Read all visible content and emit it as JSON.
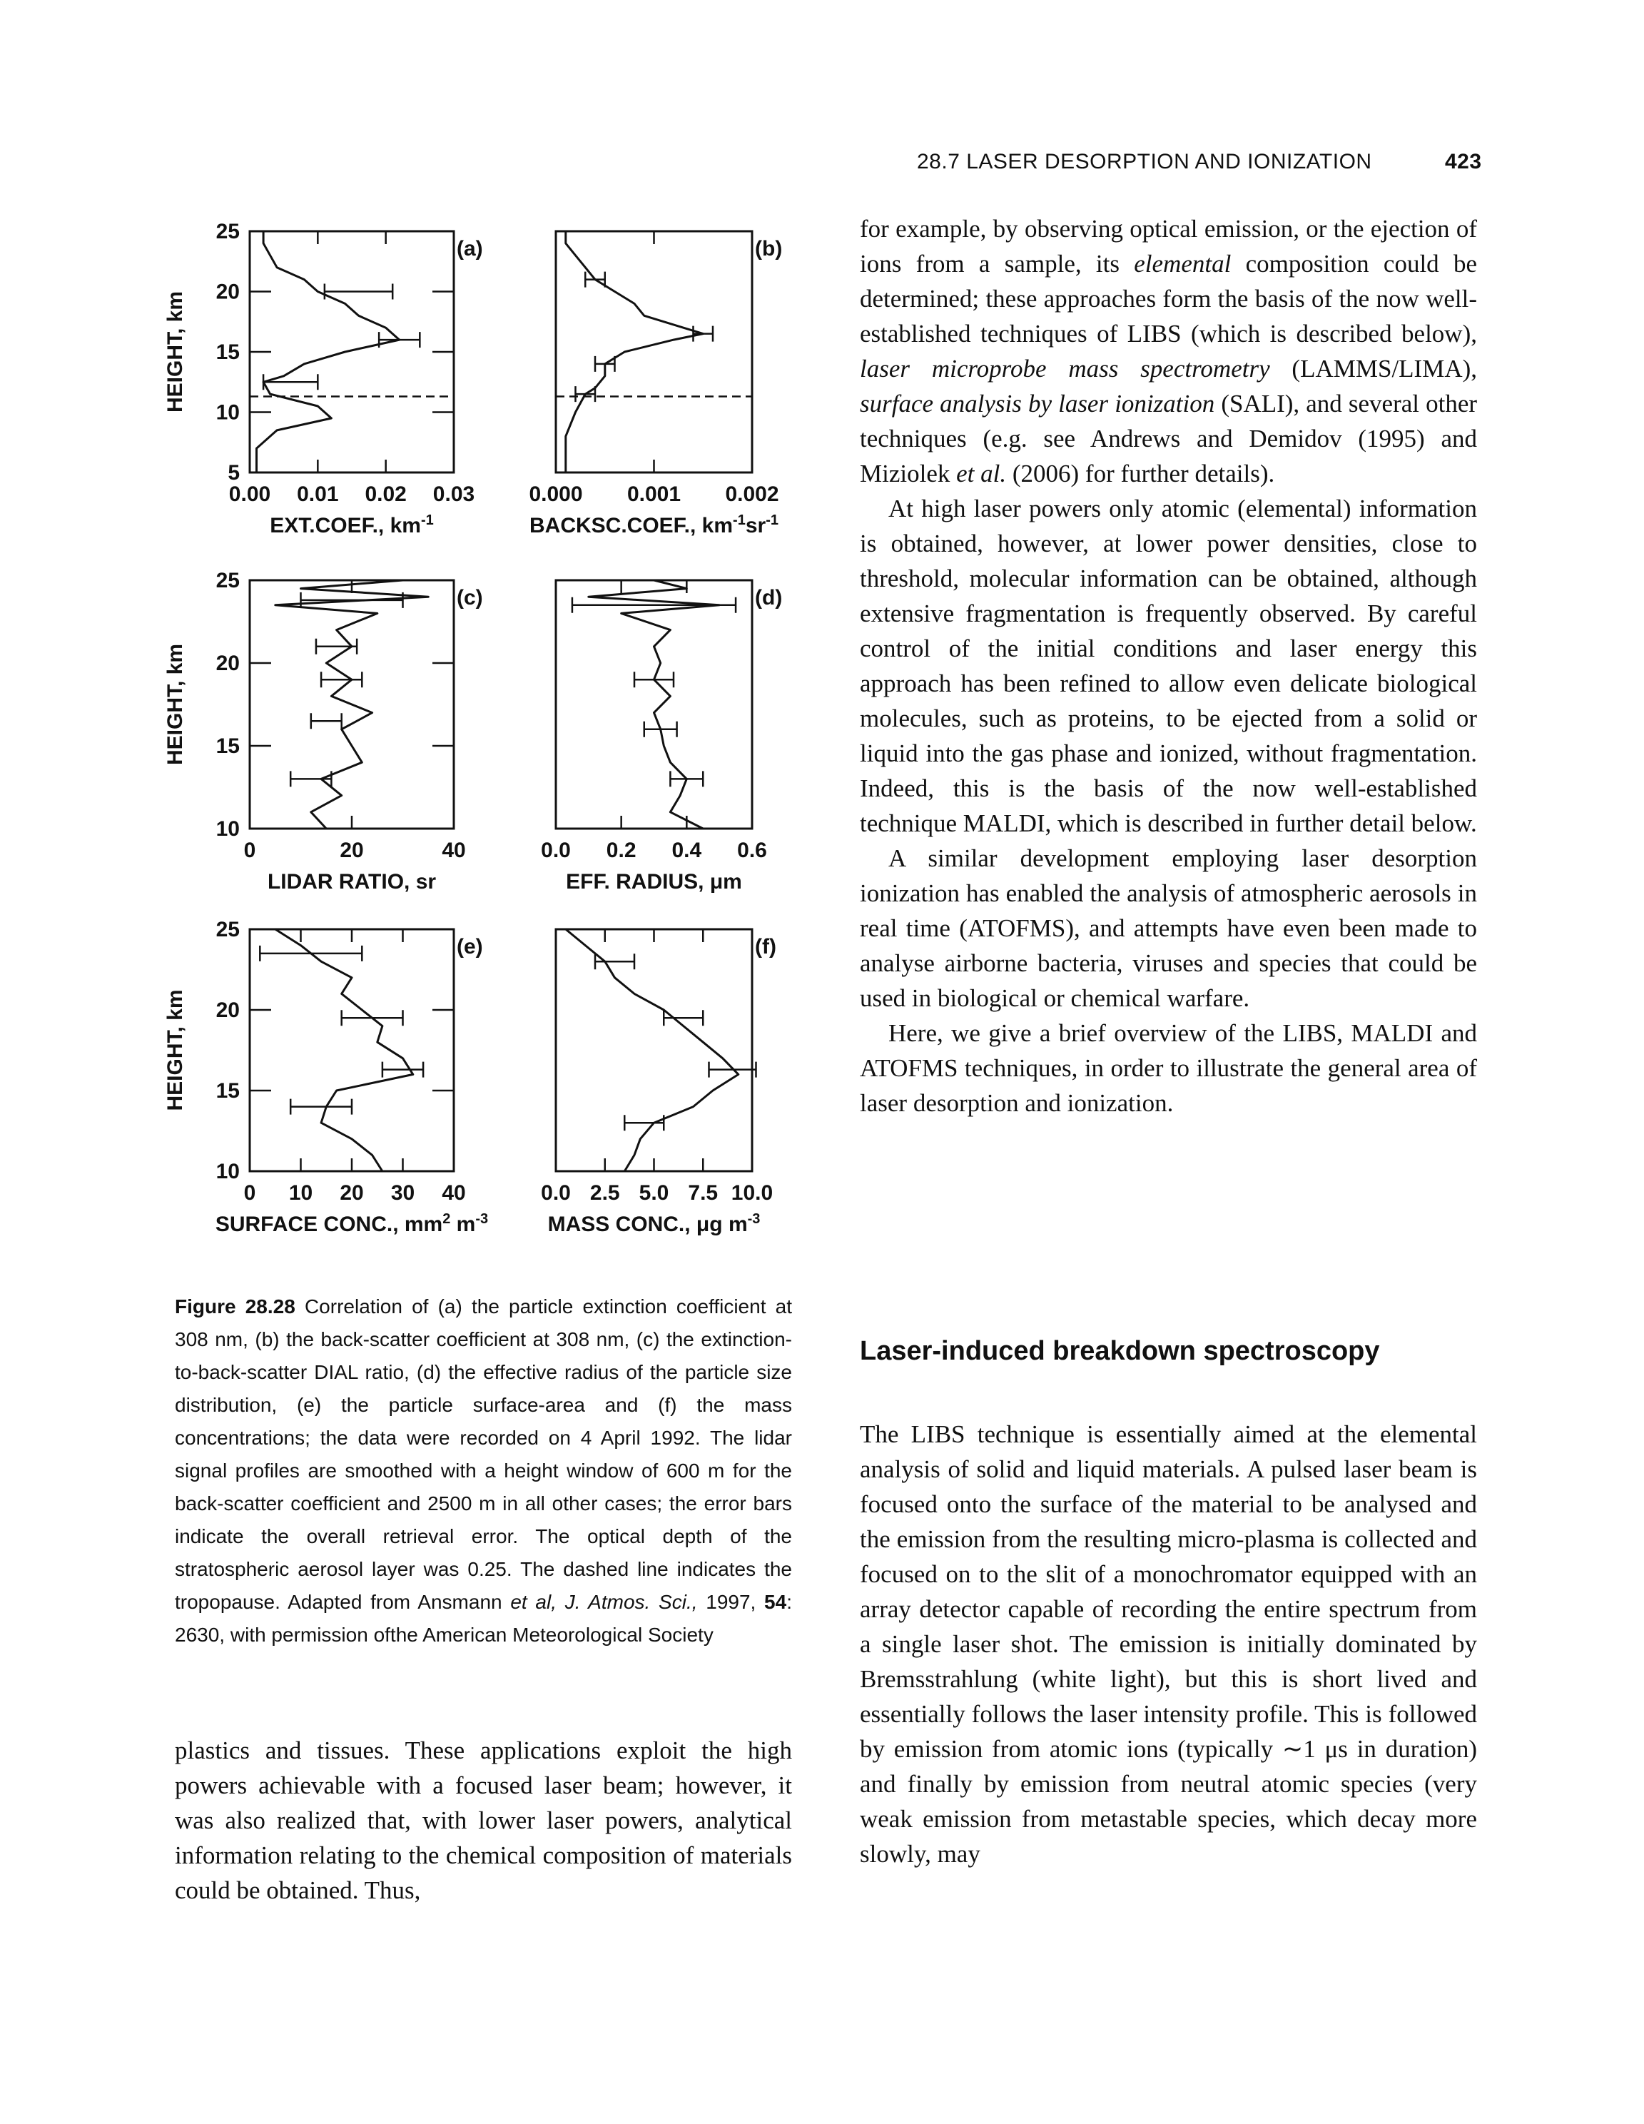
{
  "header": {
    "section": "28.7 LASER DESORPTION AND IONIZATION",
    "page": "423"
  },
  "chart_data": [
    {
      "type": "line",
      "label": "(a)",
      "x_label": [
        "EXT.COEF., km",
        "-1"
      ],
      "y_label": "HEIGHT, km",
      "xlim": [
        0,
        0.03
      ],
      "xticks": [
        {
          "value": 0,
          "label": "0.00"
        },
        0.01,
        0.02,
        0.03
      ],
      "ylim": [
        5,
        25
      ],
      "yticks": [
        5,
        10,
        15,
        20,
        25
      ],
      "y": [
        5,
        7,
        8.5,
        9.5,
        10.5,
        11.5,
        12.5,
        13,
        14,
        15,
        16,
        17,
        18,
        19,
        20,
        21,
        22,
        23,
        24,
        25
      ],
      "values": [
        0.001,
        0.001,
        0.004,
        0.012,
        0.01,
        0.003,
        0.002,
        0.005,
        0.008,
        0.014,
        0.022,
        0.02,
        0.016,
        0.014,
        0.01,
        0.008,
        0.004,
        0.003,
        0.002,
        0.002
      ],
      "error_bars": {
        "y": [
          12.5,
          16,
          20
        ],
        "values": [
          0.006,
          0.022,
          0.016
        ],
        "errors": [
          0.004,
          0.003,
          0.005
        ]
      },
      "tropopause": 11.3
    },
    {
      "type": "line",
      "label": "(b)",
      "x_label": [
        "BACKSC.COEF., km",
        "-1",
        "sr",
        "-1"
      ],
      "xlim": [
        0,
        0.002
      ],
      "xticks": [
        {
          "value": 0,
          "label": "0.000"
        },
        0.001,
        0.002
      ],
      "ylim": [
        5,
        25
      ],
      "y": [
        5,
        8,
        10,
        11.5,
        12,
        13,
        14,
        15,
        16,
        16.5,
        17,
        18,
        19,
        20,
        21,
        22,
        23,
        24,
        25
      ],
      "values": [
        0.0001,
        0.0001,
        0.0002,
        0.0003,
        0.0004,
        0.0005,
        0.0005,
        0.0007,
        0.0012,
        0.0015,
        0.0013,
        0.0009,
        0.0008,
        0.0006,
        0.0004,
        0.0003,
        0.0002,
        0.0001,
        0.0001
      ],
      "error_bars": {
        "y": [
          11.5,
          14,
          16.5,
          21
        ],
        "values": [
          0.0003,
          0.0005,
          0.0015,
          0.0004
        ],
        "errors": [
          0.0001,
          0.0001,
          0.0001,
          0.0001
        ]
      },
      "tropopause": 11.3
    },
    {
      "type": "line",
      "label": "(c)",
      "x_label": [
        "LIDAR RATIO, sr"
      ],
      "y_label": "HEIGHT, km",
      "xlim": [
        0,
        40
      ],
      "xticks": [
        0,
        20,
        40
      ],
      "ylim": [
        10,
        25
      ],
      "yticks": [
        10,
        15,
        20,
        25
      ],
      "y": [
        10,
        11,
        12,
        13,
        14,
        15,
        16,
        17,
        18,
        19,
        20,
        21,
        22,
        23,
        23.5,
        24,
        24.5,
        25
      ],
      "values": [
        15,
        12,
        18,
        14,
        22,
        20,
        18,
        24,
        16,
        20,
        15,
        20,
        17,
        25,
        5,
        35,
        10,
        30
      ],
      "error_bars": {
        "y": [
          13,
          16.5,
          19,
          21,
          23.8
        ],
        "values": [
          12,
          15,
          18,
          17,
          20
        ],
        "errors": [
          4,
          3,
          4,
          4,
          10
        ]
      }
    },
    {
      "type": "line",
      "label": "(d)",
      "x_label": [
        "EFF. RADIUS, μm"
      ],
      "xlim": [
        0,
        0.6
      ],
      "xticks": [
        {
          "value": 0,
          "label": "0.0"
        },
        0.2,
        0.4,
        0.6
      ],
      "ylim": [
        10,
        25
      ],
      "y": [
        10,
        11,
        12,
        13,
        14,
        15,
        16,
        17,
        18,
        19,
        20,
        21,
        22,
        23,
        23.5,
        24,
        24.5,
        25
      ],
      "values": [
        0.45,
        0.35,
        0.38,
        0.4,
        0.35,
        0.33,
        0.32,
        0.3,
        0.35,
        0.3,
        0.32,
        0.3,
        0.35,
        0.2,
        0.5,
        0.1,
        0.4,
        0.3
      ],
      "error_bars": {
        "y": [
          13,
          16,
          19,
          23.5
        ],
        "values": [
          0.4,
          0.32,
          0.3,
          0.3
        ],
        "errors": [
          0.05,
          0.05,
          0.06,
          0.25
        ]
      }
    },
    {
      "type": "line",
      "label": "(e)",
      "x_label": [
        "SURFACE CONC., mm",
        "2",
        " m",
        "-3"
      ],
      "y_label": "HEIGHT, km",
      "xlim": [
        0,
        40
      ],
      "xticks": [
        0,
        10,
        20,
        30,
        40
      ],
      "ylim": [
        10,
        25
      ],
      "yticks": [
        10,
        15,
        20,
        25
      ],
      "y": [
        10,
        11,
        12,
        13,
        14,
        15,
        16,
        17,
        18,
        19,
        20,
        21,
        22,
        23,
        24,
        25
      ],
      "values": [
        26,
        24,
        20,
        14,
        15,
        17,
        32,
        30,
        25,
        26,
        22,
        18,
        20,
        14,
        10,
        5
      ],
      "error_bars": {
        "y": [
          14,
          16.3,
          19.5,
          23.5
        ],
        "values": [
          14,
          30,
          24,
          12
        ],
        "errors": [
          6,
          4,
          6,
          10
        ]
      }
    },
    {
      "type": "line",
      "label": "(f)",
      "x_label": [
        "MASS CONC., μg m",
        "-3"
      ],
      "xlim": [
        0,
        10
      ],
      "xticks": [
        {
          "value": 0,
          "label": "0.0"
        },
        2.5,
        {
          "value": 5,
          "label": "5.0"
        },
        7.5,
        {
          "value": 10,
          "label": "10.0"
        }
      ],
      "ylim": [
        10,
        25
      ],
      "y": [
        10,
        11,
        12,
        13,
        14,
        15,
        16,
        17,
        18,
        19,
        20,
        21,
        22,
        23,
        24,
        25
      ],
      "values": [
        3.5,
        4,
        4.3,
        5,
        7,
        8,
        9.3,
        8.5,
        7.5,
        6.5,
        5.5,
        4,
        3,
        2.5,
        1.5,
        0.5
      ],
      "error_bars": {
        "y": [
          13,
          16.3,
          19.5,
          23
        ],
        "values": [
          4.5,
          9,
          6.5,
          3
        ],
        "errors": [
          1,
          1.2,
          1,
          1
        ]
      }
    }
  ],
  "caption": {
    "label": "Figure 28.28",
    "runs": [
      " Correlation of (a) the particle extinction coefficient at 308 nm, (b) the back-scatter coefficient at 308 nm, (c) the extinction-to-back-scatter DIAL ratio, (d) the effective radius of the particle size distribution, (e) the particle surface-area and (f) the mass concentrations; the data were recorded on 4 April 1992. The lidar signal profiles are smoothed with a height window of 600 m for the back-scatter coefficient and 2500 m in all other cases; the error bars indicate the overall retrieval error. The optical depth of the stratospheric aerosol layer was 0.25. The dashed line indicates the tropopause. Adapted from Ansmann ",
      "et al, J. Atmos. Sci.,",
      " 1997, ",
      "54",
      ": 2630, with permission ofthe American Meteorological Society"
    ]
  },
  "left_text": "plastics and tissues. These applications exploit the high powers achievable with a focused laser beam; however, it was also realized that, with lower laser powers, analytical information relating to the chemical composition of materials could be obtained. Thus,",
  "right_text": {
    "p1": [
      "for example, by observing optical emission, or the ejection of ions from a sample, its ",
      "elemental",
      " composition could be determined; these approaches form the basis of the now well-established techniques of LIBS (which is described below), ",
      "laser microprobe mass spectrometry",
      " (LAMMS/LIMA), ",
      "surface analysis by laser ionization",
      " (SALI), and several other techniques (e.g. see Andrews and Demidov (1995) and Miziolek ",
      "et al.",
      " (2006) for further details)."
    ],
    "p2": "At high laser powers only atomic (elemental) information is obtained, however, at lower power densities, close to threshold, molecular information can be obtained, although extensive fragmentation is frequently observed. By careful control of the initial conditions and laser energy this approach has been refined to allow even delicate biological molecules, such as proteins, to be ejected from a solid or liquid into the gas phase and ionized, without fragmentation. Indeed, this is the basis of the now well-established technique MALDI, which is described in further detail below.",
    "p3": "A similar development employing laser desorption ionization has enabled the analysis of atmospheric aerosols in real time (ATOFMS), and attempts have even been made to analyse airborne bacteria, viruses and species that could be used in biological or chemical warfare.",
    "p4": "Here, we give a brief overview of the LIBS, MALDI and ATOFMS techniques, in order to illustrate the general area of laser desorption and ionization.",
    "heading": "Laser-induced breakdown spectroscopy",
    "p5": "The LIBS technique is essentially aimed at the elemental analysis of solid and liquid materials. A pulsed laser beam is focused onto the surface of the material to be analysed and the emission from the resulting micro-plasma is collected and focused on to the slit of a monochromator equipped with an array detector capable of recording the entire spectrum from a single laser shot. The emission is initially dominated by Bremsstrahlung (white light), but this is short lived and essentially follows the laser intensity profile. This is followed by emission from atomic ions (typically ∼1 μs in duration) and finally by emission from neutral atomic species (very weak emission from metastable species, which decay more slowly, may"
  }
}
